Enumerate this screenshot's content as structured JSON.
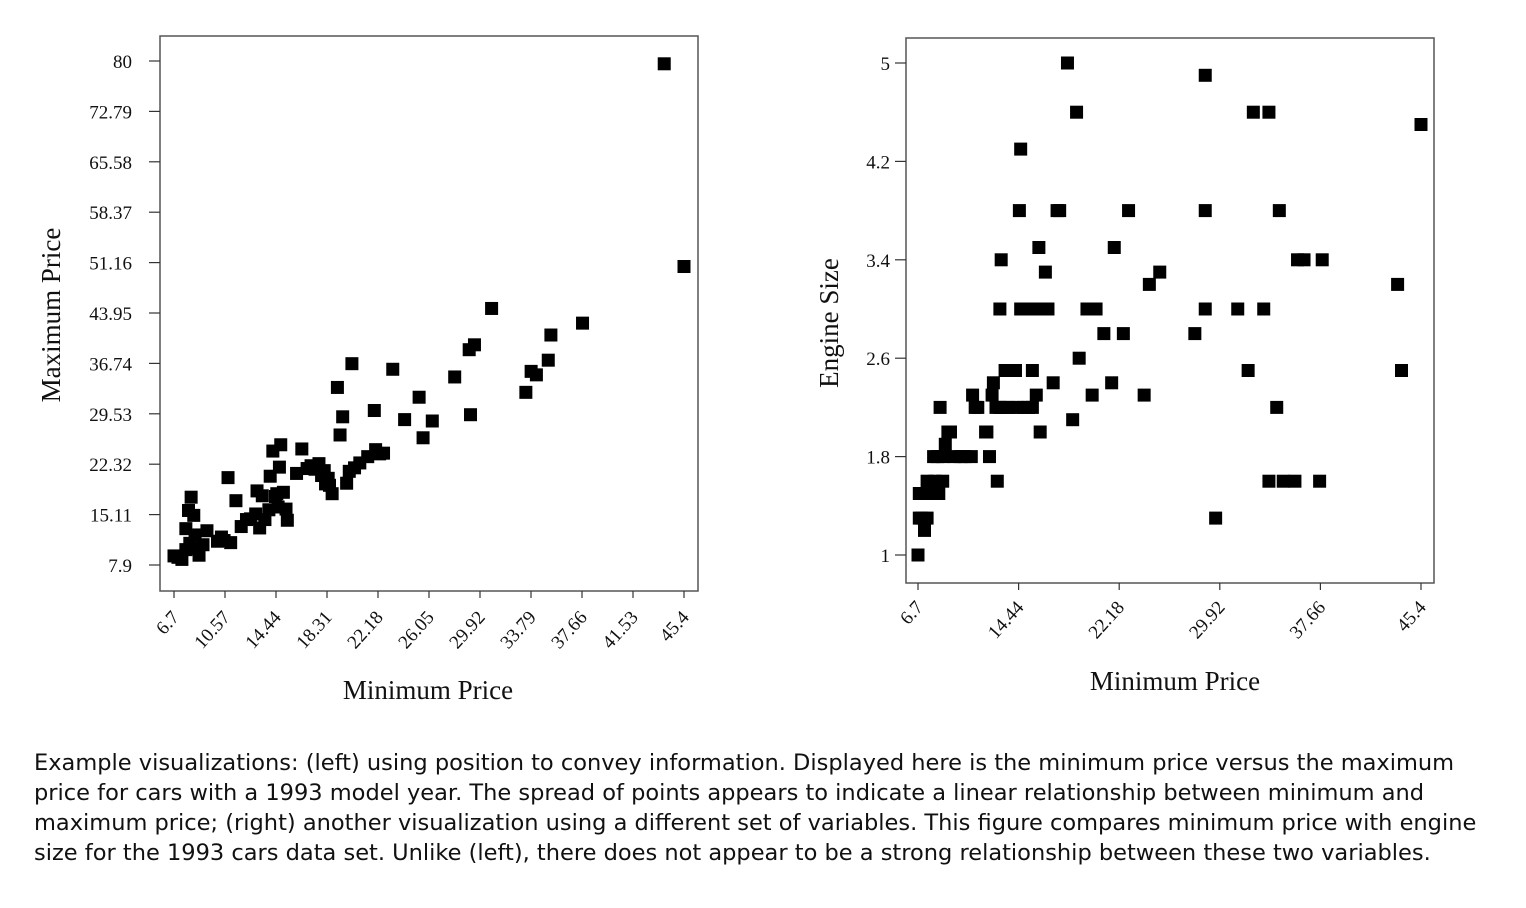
{
  "caption": "Example visualizations: (left) using position to convey information. Displayed here is the minimum price versus the maximum price for cars with a 1993 model year. The spread of points appears to indicate a linear relationship between minimum and maximum price; (right) another visualization using a different set of variables. This figure compares minimum price with engine size for the 1993 cars data set. Unlike (left), there does not appear to be a strong relationship between these two variables.",
  "chart_data": [
    {
      "type": "scatter",
      "title": "",
      "xlabel": "Minimum Price",
      "ylabel": "Maximum Price",
      "xticks": [
        "6.7",
        "10.57",
        "14.44",
        "18.31",
        "22.18",
        "26.05",
        "29.92",
        "33.79",
        "37.66",
        "41.53",
        "45.4"
      ],
      "yticks": [
        "80",
        "72.79",
        "65.58",
        "58.37",
        "51.16",
        "43.95",
        "36.74",
        "29.53",
        "22.32",
        "15.11",
        "7.9"
      ],
      "xlim": [
        6.7,
        45.4
      ],
      "ylim": [
        7.9,
        80
      ],
      "marker": "square",
      "color": "#000000",
      "x": [
        6.7,
        7.0,
        7.3,
        7.6,
        7.9,
        7.6,
        7.8,
        8.0,
        8.2,
        8.3,
        8.4,
        8.6,
        8.9,
        9.2,
        10.0,
        10.3,
        10.5,
        10.8,
        11.0,
        11.4,
        11.8,
        12.2,
        12.5,
        12.9,
        13.0,
        13.2,
        13.4,
        13.6,
        13.9,
        14.0,
        14.2,
        14.4,
        14.5,
        14.6,
        14.7,
        14.8,
        15.0,
        15.2,
        15.3,
        16.0,
        16.4,
        16.8,
        17.1,
        17.4,
        17.7,
        17.9,
        18.1,
        18.2,
        18.4,
        18.5,
        18.7,
        19.1,
        19.3,
        19.5,
        19.8,
        20.0,
        20.2,
        20.4,
        20.8,
        21.4,
        21.9,
        22.0,
        22.3,
        22.6,
        23.3,
        24.2,
        25.3,
        25.6,
        26.3,
        28.0,
        29.1,
        29.2,
        29.5,
        30.8,
        33.4,
        33.8,
        34.2,
        35.1,
        35.3,
        37.7,
        43.9,
        45.4
      ],
      "y": [
        9.2,
        9.0,
        8.7,
        10.1,
        11.0,
        13.1,
        15.7,
        17.6,
        15.0,
        12.2,
        10.3,
        9.3,
        10.8,
        12.8,
        11.3,
        11.9,
        11.4,
        20.4,
        11.1,
        17.1,
        13.4,
        14.4,
        14.5,
        15.2,
        18.5,
        13.2,
        17.8,
        14.4,
        15.8,
        20.6,
        24.2,
        17.7,
        18.1,
        16.2,
        21.9,
        25.1,
        18.3,
        15.9,
        14.3,
        21.0,
        24.5,
        21.7,
        22.1,
        21.6,
        22.4,
        20.7,
        21.4,
        19.5,
        20.3,
        19.3,
        18.1,
        33.3,
        26.5,
        29.1,
        19.6,
        21.3,
        36.7,
        21.8,
        22.5,
        23.4,
        30.0,
        24.4,
        23.8,
        23.9,
        35.9,
        28.7,
        31.9,
        26.1,
        28.5,
        34.8,
        38.7,
        29.4,
        39.4,
        44.6,
        32.6,
        35.6,
        35.1,
        37.2,
        40.8,
        42.5,
        79.6,
        50.6
      ]
    },
    {
      "type": "scatter",
      "title": "",
      "xlabel": "Minimum Price",
      "ylabel": "Engine Size",
      "xticks": [
        "6.7",
        "14.44",
        "22.18",
        "29.92",
        "37.66",
        "45.4"
      ],
      "yticks": [
        "5",
        "4.2",
        "3.4",
        "2.6",
        "1.8",
        "1"
      ],
      "xlim": [
        6.7,
        45.4
      ],
      "ylim": [
        1,
        5
      ],
      "marker": "square",
      "color": "#000000",
      "x": [
        6.7,
        6.8,
        7.0,
        7.2,
        7.4,
        6.8,
        7.2,
        7.4,
        7.6,
        8.0,
        8.3,
        8.6,
        7.9,
        8.2,
        8.6,
        8.4,
        8.8,
        9.0,
        9.2,
        9.5,
        10.0,
        10.3,
        10.8,
        10.9,
        11.1,
        11.3,
        11.9,
        12.0,
        12.2,
        12.4,
        12.5,
        12.7,
        12.8,
        13.0,
        13.0,
        13.1,
        13.3,
        13.4,
        13.7,
        14.2,
        14.3,
        14.8,
        14.5,
        14.6,
        14.6,
        14.8,
        15.1,
        15.2,
        15.5,
        15.5,
        15.8,
        15.8,
        16.0,
        16.1,
        16.5,
        16.7,
        17.1,
        17.4,
        17.6,
        18.2,
        18.6,
        18.9,
        19.1,
        19.7,
        20.1,
        20.4,
        21.0,
        21.8,
        21.6,
        22.5,
        22.9,
        24.1,
        24.5,
        25.3,
        28.0,
        28.8,
        29.6,
        28.8,
        28.8,
        32.5,
        33.3,
        33.7,
        43.6,
        45.4,
        34.5,
        35.7,
        35.9,
        36.4,
        37.8,
        43.9,
        32.1,
        33.7,
        34.8,
        37.6,
        34.3,
        31.3
      ],
      "y": [
        1.0,
        1.3,
        1.3,
        1.2,
        1.3,
        1.5,
        1.5,
        1.6,
        1.5,
        1.6,
        1.5,
        1.6,
        1.8,
        1.8,
        1.8,
        2.2,
        1.9,
        2.0,
        2.0,
        1.8,
        1.8,
        1.8,
        1.8,
        2.3,
        2.2,
        2.2,
        2.0,
        2.0,
        1.8,
        2.3,
        2.4,
        2.2,
        1.6,
        2.2,
        3.0,
        3.4,
        2.2,
        2.5,
        2.2,
        2.5,
        2.2,
        2.2,
        3.8,
        4.3,
        3.0,
        3.0,
        3.0,
        2.2,
        2.5,
        2.2,
        2.3,
        3.0,
        3.5,
        2.0,
        3.3,
        3.0,
        2.4,
        3.8,
        3.8,
        5.0,
        2.1,
        4.6,
        2.6,
        3.0,
        2.3,
        3.0,
        2.8,
        3.5,
        2.4,
        2.8,
        3.8,
        2.3,
        3.2,
        3.3,
        2.8,
        3.0,
        1.3,
        4.9,
        3.8,
        4.6,
        3.0,
        4.6,
        3.2,
        4.5,
        3.8,
        1.6,
        3.4,
        3.4,
        3.4,
        2.5,
        2.5,
        1.6,
        1.6,
        1.6,
        2.2,
        3.0
      ]
    }
  ]
}
